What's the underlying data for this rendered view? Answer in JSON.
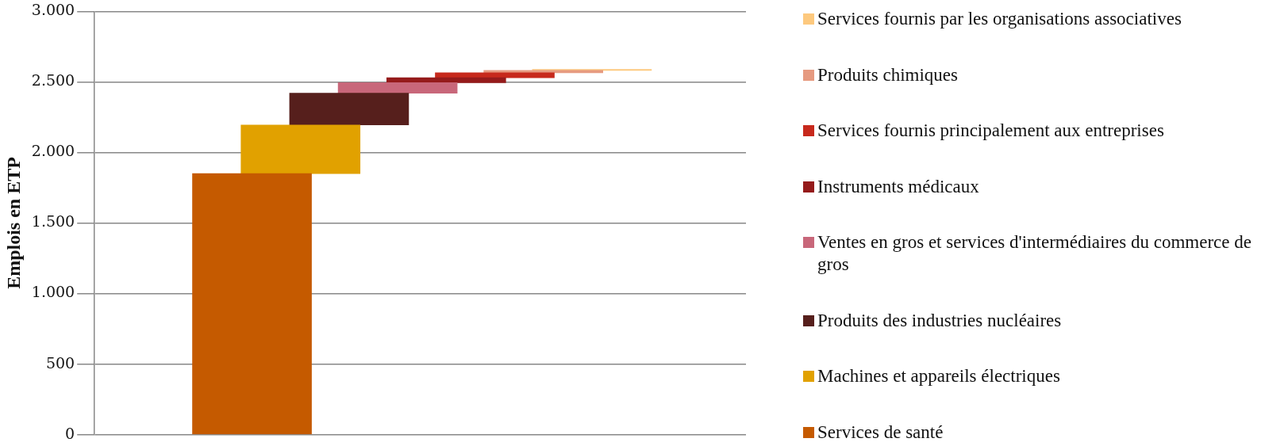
{
  "chart_data": {
    "type": "bar",
    "ylabel": "Emplois en ETP",
    "categories": [
      null
    ],
    "ylim": [
      0,
      3000
    ],
    "yticks": [
      {
        "value": 0,
        "label": "0"
      },
      {
        "value": 500,
        "label": "500"
      },
      {
        "value": 1000,
        "label": "1.000"
      },
      {
        "value": 1500,
        "label": "1.500"
      },
      {
        "value": 2000,
        "label": "2.000"
      },
      {
        "value": 2500,
        "label": "2.500"
      },
      {
        "value": 3000,
        "label": "3.000"
      }
    ],
    "grid": "y",
    "legend": "right",
    "series": [
      {
        "name": "Services de santé",
        "color": "#c55a00",
        "values": [
          1850
        ],
        "base": [
          0
        ]
      },
      {
        "name": "Machines et appareils électriques",
        "color": "#e1a100",
        "values": [
          345
        ],
        "base": [
          1850
        ]
      },
      {
        "name": "Produits des industries nucléaires",
        "color": "#561f1c",
        "values": [
          225
        ],
        "base": [
          2195
        ]
      },
      {
        "name": "Ventes en gros et services d'intermédiaires du commerce de gros",
        "color": "#c8677a",
        "values": [
          75
        ],
        "base": [
          2420
        ]
      },
      {
        "name": "Instruments médicaux",
        "color": "#951b1b",
        "values": [
          35
        ],
        "base": [
          2495
        ]
      },
      {
        "name": "Services fournis principalement aux entreprises",
        "color": "#c7291c",
        "values": [
          35
        ],
        "base": [
          2530
        ]
      },
      {
        "name": "Produits chimiques",
        "color": "#e69a80",
        "values": [
          17
        ],
        "base": [
          2565
        ]
      },
      {
        "name": "Services fournis par les organisations associatives",
        "color": "#fdc97e",
        "values": [
          7
        ],
        "base": [
          2582
        ]
      }
    ]
  }
}
